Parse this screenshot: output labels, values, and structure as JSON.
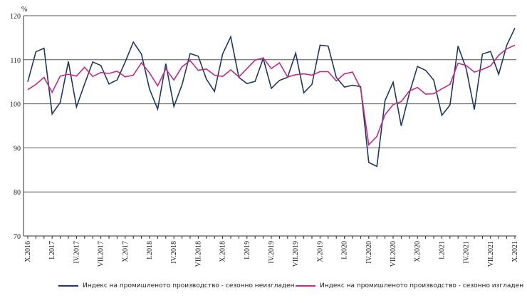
{
  "chart_data": {
    "type": "line",
    "ylabel": "%",
    "ylim": [
      70,
      120
    ],
    "yticks": [
      70,
      80,
      90,
      100,
      110,
      120
    ],
    "grid": true,
    "legend_position": "bottom",
    "x_tick_labels": [
      "X.2016",
      "I.2017",
      "IV.2017",
      "VII.2017",
      "X.2017",
      "I.2018",
      "IV.2018",
      "VII.2018",
      "X.2018",
      "I.2019",
      "IV.2019",
      "VII.2019",
      "X.2019",
      "I.2020",
      "IV.2020",
      "VII.2020",
      "X.2020",
      "I.2021",
      "IV.2021",
      "VII.2021",
      "X.2021"
    ],
    "x_period": "monthly, X.2016 – X.2021",
    "series": [
      {
        "name": "Индекс на промишленото  производство - сезонно  неизгладен",
        "color": "#1f3864",
        "values": [
          105,
          111.8,
          112.6,
          97.7,
          100.3,
          109.6,
          99.3,
          104.5,
          109.5,
          108.7,
          104.5,
          105.4,
          109.5,
          114,
          111.3,
          103.3,
          98.8,
          109.1,
          99.4,
          104.3,
          111.4,
          110.8,
          105.6,
          102.8,
          111.3,
          115.2,
          106,
          104.6,
          105.1,
          110.3,
          103.5,
          105.3,
          106,
          111.5,
          102.5,
          104.4,
          113.3,
          113.1,
          106,
          103.8,
          104.2,
          103.9,
          86.7,
          85.8,
          100.7,
          104.9,
          95,
          102.4,
          108.5,
          107.6,
          105.4,
          97.4,
          99.7,
          113.1,
          108,
          98.7,
          111.3,
          111.9,
          106.7,
          113.3,
          117.2
        ]
      },
      {
        "name": "Индекс на промишленото  производство - сезонно  изгладен",
        "color": "#c2298a",
        "values": [
          103.2,
          104.4,
          106,
          102.6,
          106.3,
          106.7,
          106.3,
          108.3,
          106.2,
          107.1,
          106.9,
          107.4,
          106.1,
          106.5,
          109.3,
          107,
          104.1,
          107.9,
          105.4,
          108.4,
          109.8,
          107.6,
          107.9,
          106.5,
          106.2,
          107.7,
          106.1,
          108,
          109.9,
          110.4,
          108,
          109.3,
          106.1,
          106.6,
          106.8,
          106.5,
          107.3,
          107.3,
          105.2,
          106.8,
          107.2,
          103.5,
          90.7,
          92.6,
          97.5,
          99.8,
          100.5,
          102.9,
          103.7,
          102.2,
          102.3,
          103.4,
          104.4,
          109.2,
          108.7,
          107.2,
          107.8,
          108.6,
          111,
          112.5,
          113.3
        ]
      }
    ]
  }
}
